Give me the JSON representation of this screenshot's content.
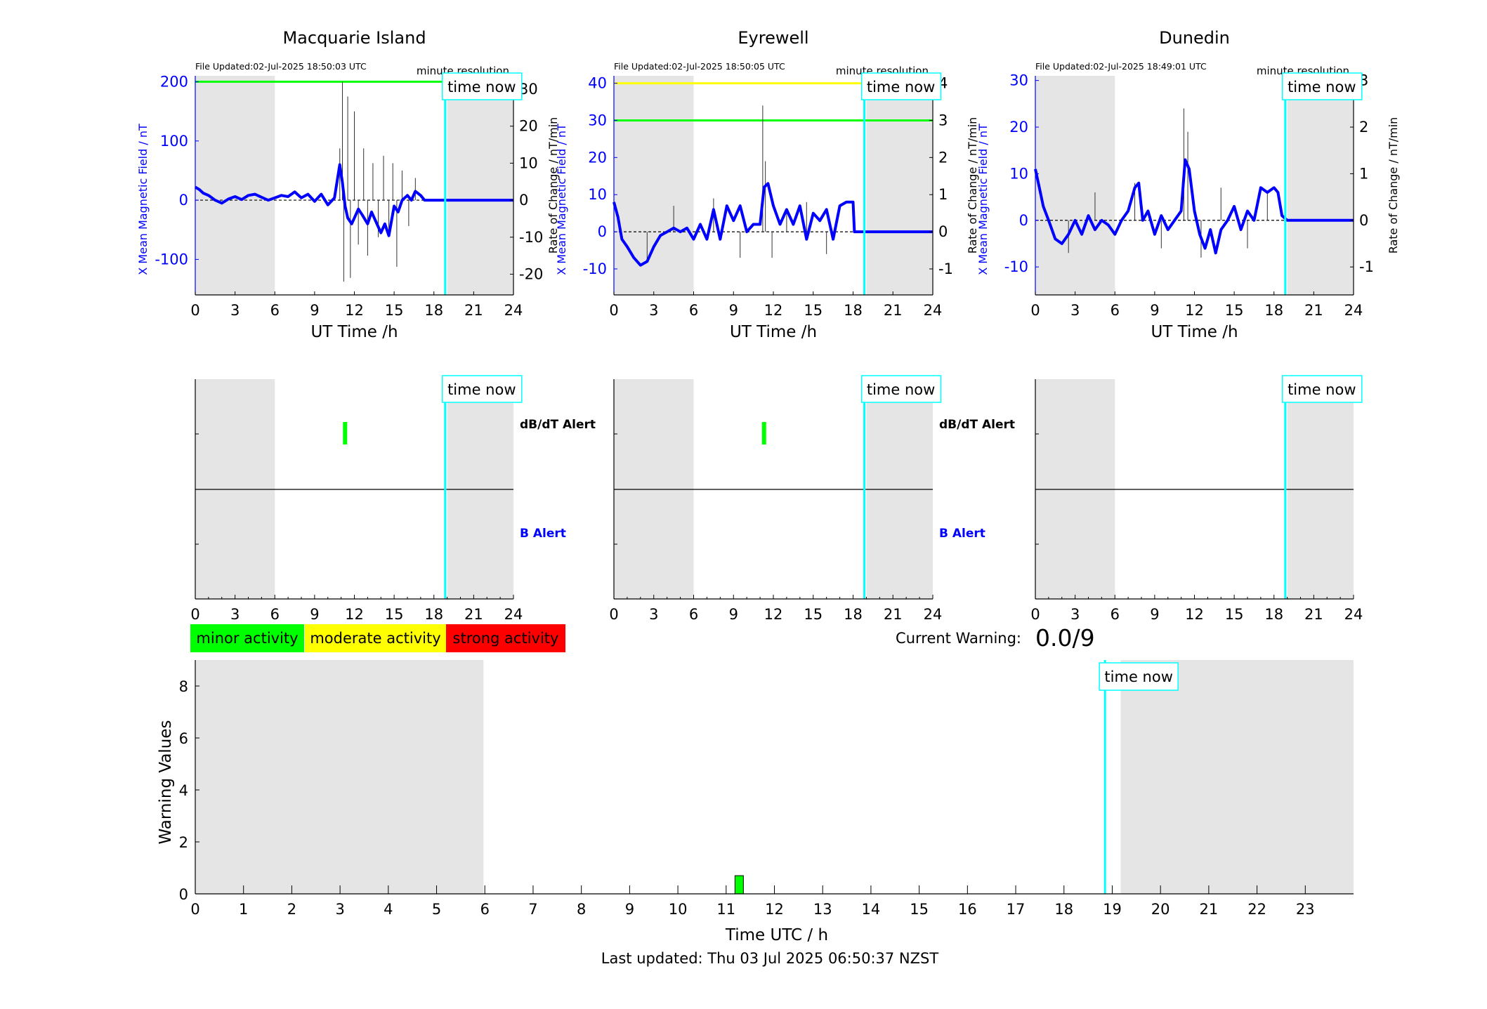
{
  "colors": {
    "field": "#0000ff",
    "dbdt": "#333333",
    "minor": "#00ff00",
    "moderate": "#ffff00",
    "strong": "#ff0000",
    "night": "#e5e5e5",
    "time_now": "#00ffff"
  },
  "labels": {
    "time_now": "time now",
    "minute_resolution": "minute resolution",
    "ut_time": "UT Time /h",
    "y_left": "X Mean Magnetic Field / nT",
    "y_right": "Rate of Change / nT/min",
    "dbdt_alert": "dB/dT Alert",
    "b_alert": "B Alert",
    "current_warning_label": "Current Warning:",
    "current_warning_value": "0.0/9",
    "warning_values": "Warning Values",
    "time_utc": "Time UTC / h",
    "last_updated": "Last updated: Thu 03 Jul 2025 06:50:37 NZST"
  },
  "legend": [
    "minor activity",
    "moderate activity",
    "strong activity"
  ],
  "chart_data": [
    {
      "type": "line",
      "station": "Macquarie Island",
      "title": "Macquarie Island",
      "file_updated": "File Updated:02-Jul-2025 18:50:03 UTC",
      "xlim": [
        0,
        24
      ],
      "xticks": [
        0,
        3,
        6,
        9,
        12,
        15,
        18,
        21,
        24
      ],
      "ylim_left": [
        -160,
        210
      ],
      "yticks_left": [
        -100,
        0,
        100,
        200
      ],
      "ylim_right": [
        -25.6,
        33.6
      ],
      "yticks_right": [
        -20,
        -10,
        0,
        10,
        20,
        30
      ],
      "thresholds": [
        {
          "level": "minor",
          "value": 200
        }
      ],
      "night_shading": [
        [
          0,
          6
        ],
        [
          19,
          24
        ]
      ],
      "time_now": 18.85,
      "field_series": {
        "x": [
          0,
          0.3,
          0.6,
          1,
          1.5,
          2,
          2.5,
          3,
          3.5,
          4,
          4.5,
          5,
          5.5,
          6,
          6.5,
          7,
          7.5,
          8,
          8.5,
          9,
          9.5,
          10,
          10.5,
          10.9,
          11.1,
          11.3,
          11.5,
          11.8,
          12,
          12.3,
          12.6,
          13,
          13.3,
          13.6,
          14,
          14.3,
          14.6,
          15,
          15.3,
          15.6,
          16,
          16.3,
          16.6,
          17,
          17.3,
          18,
          19,
          20,
          21,
          22,
          23,
          24
        ],
        "y": [
          22,
          18,
          12,
          8,
          0,
          -5,
          2,
          6,
          1,
          8,
          10,
          5,
          0,
          4,
          8,
          6,
          14,
          4,
          10,
          -2,
          10,
          -8,
          4,
          60,
          30,
          -10,
          -30,
          -40,
          -30,
          -15,
          -25,
          -40,
          -20,
          -35,
          -55,
          -40,
          -60,
          -10,
          -20,
          0,
          8,
          0,
          15,
          8,
          0,
          0,
          0,
          0,
          0,
          0,
          0,
          0
        ]
      },
      "dbdt_spikes": [
        {
          "x": 10.9,
          "y": 14
        },
        {
          "x": 11.1,
          "y": 32
        },
        {
          "x": 11.2,
          "y": -22
        },
        {
          "x": 11.5,
          "y": 28
        },
        {
          "x": 11.7,
          "y": -21
        },
        {
          "x": 12,
          "y": 24
        },
        {
          "x": 12.3,
          "y": -12
        },
        {
          "x": 12.7,
          "y": 14
        },
        {
          "x": 13,
          "y": -15
        },
        {
          "x": 13.4,
          "y": 10
        },
        {
          "x": 13.8,
          "y": -10
        },
        {
          "x": 14.2,
          "y": 12
        },
        {
          "x": 14.6,
          "y": -8
        },
        {
          "x": 14.9,
          "y": 10
        },
        {
          "x": 15.2,
          "y": -18
        },
        {
          "x": 15.6,
          "y": 8
        },
        {
          "x": 16.1,
          "y": -7
        },
        {
          "x": 16.6,
          "y": 6
        }
      ],
      "alerts": {
        "dbdt": [
          11.3
        ],
        "b": []
      }
    },
    {
      "type": "line",
      "station": "Eyrewell",
      "title": "Eyrewell",
      "file_updated": "File Updated:02-Jul-2025 18:50:05 UTC",
      "xlim": [
        0,
        24
      ],
      "xticks": [
        0,
        3,
        6,
        9,
        12,
        15,
        18,
        21,
        24
      ],
      "ylim_left": [
        -17,
        42
      ],
      "yticks_left": [
        -10,
        0,
        10,
        20,
        30,
        40
      ],
      "ylim_right": [
        -1.7,
        4.2
      ],
      "yticks_right": [
        -1,
        0,
        1,
        2,
        3,
        4
      ],
      "thresholds": [
        {
          "level": "moderate",
          "value": 40
        },
        {
          "level": "minor",
          "value": 30
        }
      ],
      "night_shading": [
        [
          0,
          6
        ],
        [
          19,
          24
        ]
      ],
      "time_now": 18.85,
      "field_series": {
        "x": [
          0,
          0.3,
          0.6,
          1,
          1.5,
          2,
          2.5,
          3,
          3.5,
          4,
          4.5,
          5,
          5.5,
          6,
          6.5,
          7,
          7.5,
          8,
          8.5,
          9,
          9.5,
          10,
          10.5,
          11,
          11.3,
          11.6,
          12,
          12.5,
          13,
          13.5,
          14,
          14.5,
          15,
          15.5,
          16,
          16.5,
          17,
          17.5,
          18,
          18.1,
          19,
          20,
          21,
          22,
          23,
          24
        ],
        "y": [
          8,
          4,
          -2,
          -4,
          -7,
          -9,
          -8,
          -4,
          -1,
          0,
          1,
          0,
          1,
          -2,
          2,
          -2,
          6,
          -2,
          7,
          3,
          7,
          0,
          2,
          2,
          12,
          13,
          7,
          2,
          6,
          2,
          7,
          -2,
          5,
          3,
          6,
          -2,
          7,
          8,
          8,
          0,
          0,
          0,
          0,
          0,
          0,
          0
        ]
      },
      "dbdt_spikes": [
        {
          "x": 2.5,
          "y": -0.8
        },
        {
          "x": 4.5,
          "y": 0.7
        },
        {
          "x": 7.5,
          "y": 0.9
        },
        {
          "x": 9.5,
          "y": -0.7
        },
        {
          "x": 11.2,
          "y": 3.4
        },
        {
          "x": 11.4,
          "y": 1.9
        },
        {
          "x": 11.9,
          "y": -0.7
        },
        {
          "x": 13,
          "y": 0.6
        },
        {
          "x": 14.5,
          "y": 0.8
        },
        {
          "x": 16,
          "y": -0.6
        }
      ],
      "alerts": {
        "dbdt": [
          11.3
        ],
        "b": []
      }
    },
    {
      "type": "line",
      "station": "Dunedin",
      "title": "Dunedin",
      "file_updated": "File Updated:02-Jul-2025 18:49:01 UTC",
      "xlim": [
        0,
        24
      ],
      "xticks": [
        0,
        3,
        6,
        9,
        12,
        15,
        18,
        21,
        24
      ],
      "ylim_left": [
        -16,
        31
      ],
      "yticks_left": [
        -10,
        0,
        10,
        20,
        30
      ],
      "ylim_right": [
        -1.6,
        3.1
      ],
      "yticks_right": [
        -1,
        0,
        1,
        2,
        3
      ],
      "thresholds": [],
      "night_shading": [
        [
          0,
          6
        ],
        [
          19,
          24
        ]
      ],
      "time_now": 18.85,
      "field_series": {
        "x": [
          0,
          0.3,
          0.6,
          1,
          1.5,
          2,
          2.5,
          3,
          3.5,
          4,
          4.5,
          5,
          5.5,
          6,
          6.5,
          7,
          7.5,
          7.8,
          8.1,
          8.5,
          9,
          9.5,
          10,
          10.5,
          11,
          11.3,
          11.6,
          12,
          12.4,
          12.8,
          13.2,
          13.6,
          14,
          14.5,
          15,
          15.5,
          16,
          16.5,
          17,
          17.5,
          18,
          18.3,
          18.6,
          19,
          20,
          21,
          22,
          23,
          24
        ],
        "y": [
          11,
          7,
          3,
          0,
          -4,
          -5,
          -3,
          0,
          -3,
          1,
          -2,
          0,
          -1,
          -3,
          0,
          2,
          7,
          8,
          0,
          2,
          -3,
          1,
          -2,
          0,
          2,
          13,
          11,
          2,
          -3,
          -6,
          -2,
          -7,
          -2,
          0,
          3,
          -2,
          2,
          0,
          7,
          6,
          7,
          6,
          1,
          0,
          0,
          0,
          0,
          0,
          0
        ]
      },
      "dbdt_spikes": [
        {
          "x": 2.5,
          "y": -0.7
        },
        {
          "x": 4.5,
          "y": 0.6
        },
        {
          "x": 7.5,
          "y": 0.8
        },
        {
          "x": 9.5,
          "y": -0.6
        },
        {
          "x": 11.2,
          "y": 2.4
        },
        {
          "x": 11.5,
          "y": 1.9
        },
        {
          "x": 12.5,
          "y": -0.8
        },
        {
          "x": 14,
          "y": 0.7
        },
        {
          "x": 16,
          "y": -0.6
        },
        {
          "x": 17.5,
          "y": 0.6
        }
      ],
      "alerts": {
        "dbdt": [],
        "b": []
      }
    },
    {
      "type": "bar",
      "title": "",
      "xlabel": "Time UTC / h",
      "ylabel": "Warning Values",
      "xlim": [
        0,
        24
      ],
      "xticks": [
        0,
        1,
        2,
        3,
        4,
        5,
        6,
        7,
        8,
        9,
        10,
        11,
        12,
        13,
        14,
        15,
        16,
        17,
        18,
        19,
        20,
        21,
        22,
        23
      ],
      "ylim": [
        0,
        9
      ],
      "yticks": [
        0,
        2,
        4,
        6,
        8
      ],
      "night_shading": [
        [
          0,
          6
        ],
        [
          19,
          24
        ]
      ],
      "time_now": 18.85,
      "bars": [
        {
          "x": 11.27,
          "value": 0.7,
          "level": "minor"
        }
      ]
    }
  ]
}
